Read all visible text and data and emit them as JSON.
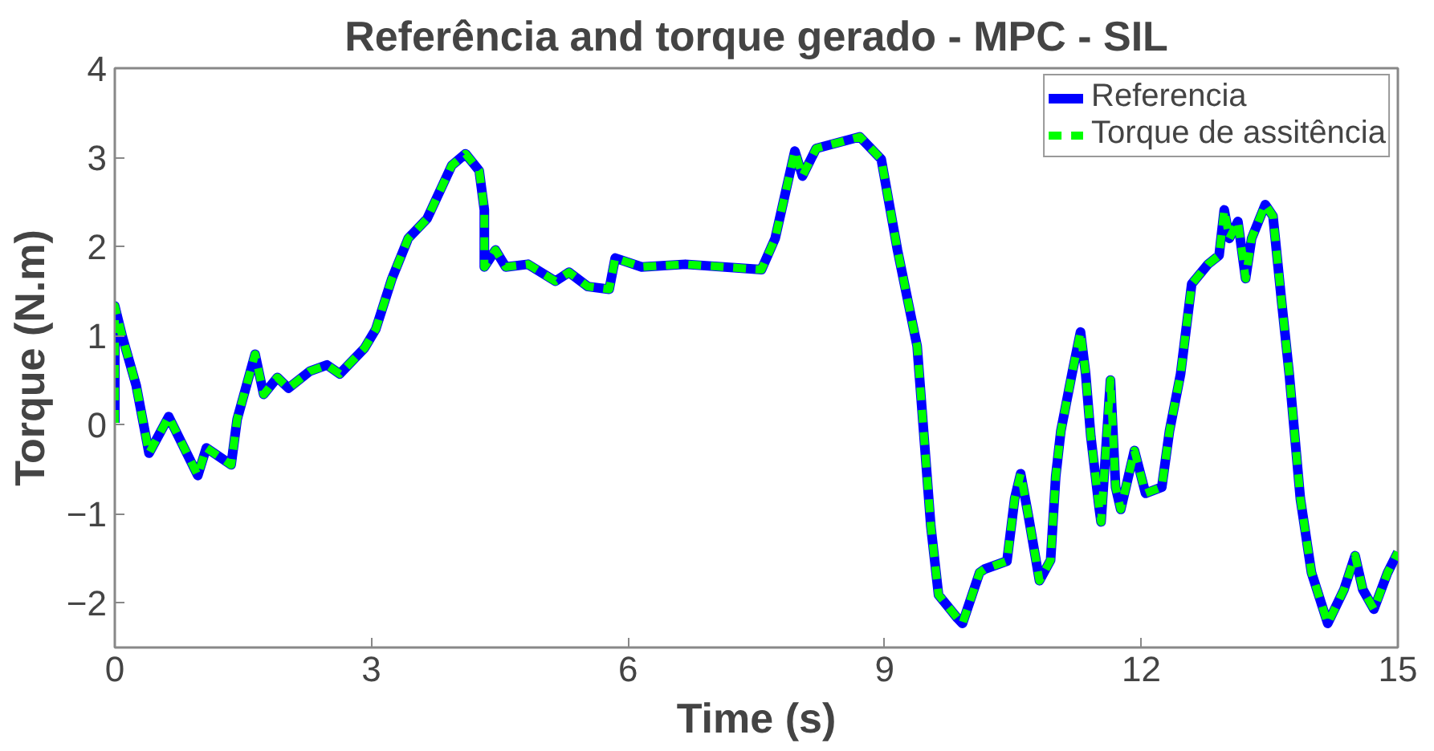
{
  "chart_data": {
    "type": "line",
    "title": "Referência and torque gerado - MPC - SIL",
    "xlabel": "Time (s)",
    "ylabel": "Torque (N.m)",
    "x": [
      0,
      0,
      0.09,
      0.25,
      0.4,
      0.63,
      0.97,
      1.07,
      1.36,
      1.43,
      1.64,
      1.74,
      1.9,
      2.03,
      2.28,
      2.48,
      2.63,
      2.92,
      3.05,
      3.24,
      3.43,
      3.65,
      3.94,
      4.1,
      4.26,
      4.32,
      4.32,
      4.45,
      4.57,
      4.83,
      5.15,
      5.31,
      5.53,
      5.78,
      5.85,
      6.16,
      6.67,
      7.56,
      7.72,
      7.95,
      8.04,
      8.2,
      8.71,
      8.96,
      9.15,
      9.38,
      9.54,
      9.63,
      9.85,
      9.91,
      10.11,
      10.17,
      10.43,
      10.52,
      10.59,
      10.68,
      10.81,
      10.94,
      11.0,
      11.06,
      11.19,
      11.29,
      11.35,
      11.41,
      11.51,
      11.53,
      11.64,
      11.7,
      11.76,
      11.92,
      12.05,
      12.24,
      12.33,
      12.46,
      12.59,
      12.78,
      12.91,
      12.97,
      13.03,
      13.13,
      13.22,
      13.29,
      13.45,
      13.54,
      13.64,
      13.73,
      13.86,
      13.99,
      14.18,
      14.37,
      14.5,
      14.59,
      14.72,
      14.88,
      15.0
    ],
    "series": [
      {
        "name": "Referencia",
        "color": "#0000ff",
        "line_style": "solid",
        "values": [
          0.02,
          1.33,
          0.98,
          0.44,
          -0.32,
          0.09,
          -0.57,
          -0.26,
          -0.45,
          0.06,
          0.79,
          0.34,
          0.53,
          0.41,
          0.6,
          0.67,
          0.57,
          0.86,
          1.07,
          1.64,
          2.09,
          2.31,
          2.91,
          3.04,
          2.85,
          2.41,
          1.77,
          1.96,
          1.77,
          1.8,
          1.61,
          1.71,
          1.55,
          1.52,
          1.87,
          1.77,
          1.8,
          1.74,
          2.09,
          3.07,
          2.79,
          3.1,
          3.23,
          2.98,
          1.96,
          0.88,
          -1.14,
          -1.91,
          -2.17,
          -2.23,
          -1.66,
          -1.62,
          -1.53,
          -0.83,
          -0.55,
          -1.02,
          -1.75,
          -1.52,
          -0.58,
          -0.07,
          0.57,
          1.04,
          0.57,
          -0.13,
          -0.95,
          -1.09,
          0.5,
          -0.7,
          -0.95,
          -0.29,
          -0.77,
          -0.7,
          -0.07,
          0.57,
          1.58,
          1.8,
          1.9,
          2.41,
          2.09,
          2.28,
          1.64,
          2.09,
          2.47,
          2.34,
          1.39,
          0.57,
          -0.83,
          -1.66,
          -2.23,
          -1.85,
          -1.47,
          -1.85,
          -2.07,
          -1.66,
          -1.43
        ]
      },
      {
        "name": "Torque de assitência",
        "color": "#00ff00",
        "line_style": "dashed",
        "values": [
          0.02,
          1.33,
          0.98,
          0.44,
          -0.32,
          0.09,
          -0.57,
          -0.26,
          -0.45,
          0.06,
          0.79,
          0.34,
          0.53,
          0.41,
          0.6,
          0.67,
          0.57,
          0.86,
          1.07,
          1.64,
          2.09,
          2.31,
          2.91,
          3.04,
          2.85,
          2.41,
          1.77,
          1.96,
          1.77,
          1.8,
          1.61,
          1.71,
          1.55,
          1.52,
          1.87,
          1.77,
          1.8,
          1.74,
          2.09,
          3.07,
          2.79,
          3.1,
          3.23,
          2.98,
          1.96,
          0.88,
          -1.14,
          -1.91,
          -2.17,
          -2.23,
          -1.66,
          -1.62,
          -1.53,
          -0.83,
          -0.55,
          -1.02,
          -1.75,
          -1.52,
          -0.58,
          -0.07,
          0.57,
          1.04,
          0.57,
          -0.13,
          -0.95,
          -1.09,
          0.5,
          -0.7,
          -0.95,
          -0.29,
          -0.77,
          -0.7,
          -0.07,
          0.57,
          1.58,
          1.8,
          1.9,
          2.41,
          2.09,
          2.28,
          1.64,
          2.09,
          2.47,
          2.34,
          1.39,
          0.57,
          -0.83,
          -1.66,
          -2.23,
          -1.85,
          -1.47,
          -1.85,
          -2.07,
          -1.66,
          -1.43
        ]
      }
    ],
    "xlim": [
      0,
      15
    ],
    "ylim": [
      -2.5,
      4
    ],
    "xticks": [
      0,
      3,
      6,
      9,
      12,
      15
    ],
    "yticks": [
      -2,
      -1,
      0,
      1,
      2,
      3,
      4
    ],
    "grid": false,
    "legend": "top right",
    "marker": "none"
  }
}
